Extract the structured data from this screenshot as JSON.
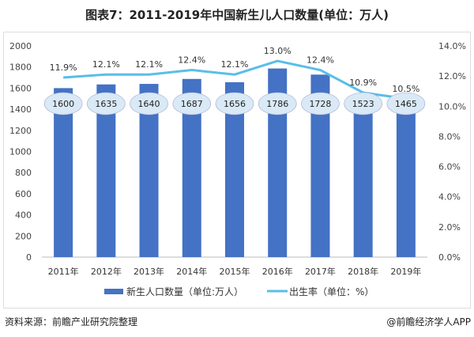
{
  "title": "图表7：2011-2019年中国新生儿人口数量(单位：万人)",
  "source": "资料来源：前瞻产业研究院整理",
  "credit": "@前瞻经济学人APP",
  "colors": {
    "bar": "#4472c4",
    "line": "#5bbde8",
    "label_bg": "#d9e9f5"
  },
  "chart_data": {
    "type": "bar+line",
    "categories": [
      "2011年",
      "2012年",
      "2013年",
      "2014年",
      "2015年",
      "2016年",
      "2017年",
      "2018年",
      "2019年"
    ],
    "series": [
      {
        "name": "新生人口数量（单位:万人）",
        "type": "bar",
        "axis": "left",
        "values": [
          1600,
          1635,
          1640,
          1687,
          1656,
          1786,
          1728,
          1523,
          1465
        ],
        "labels": [
          "1600",
          "1635",
          "1640",
          "1687",
          "1656",
          "1786",
          "1728",
          "1523",
          "1465"
        ]
      },
      {
        "name": "出生率（单位：%）",
        "type": "line",
        "axis": "right",
        "values": [
          11.9,
          12.1,
          12.1,
          12.4,
          12.1,
          13.0,
          12.4,
          10.9,
          10.5
        ],
        "labels": [
          "11.9%",
          "12.1%",
          "12.1%",
          "12.4%",
          "12.1%",
          "13.0%",
          "12.4%",
          "10.9%",
          "10.5%"
        ]
      }
    ],
    "left_axis": {
      "ylim": [
        0,
        2000
      ],
      "ticks": [
        "0",
        "200",
        "400",
        "600",
        "800",
        "1000",
        "1200",
        "1400",
        "1600",
        "1800",
        "2000"
      ]
    },
    "right_axis": {
      "ylim": [
        0,
        14
      ],
      "ticks": [
        "0.0%",
        "2.0%",
        "4.0%",
        "6.0%",
        "8.0%",
        "10.0%",
        "12.0%",
        "14.0%"
      ]
    },
    "legend_position": "bottom"
  }
}
